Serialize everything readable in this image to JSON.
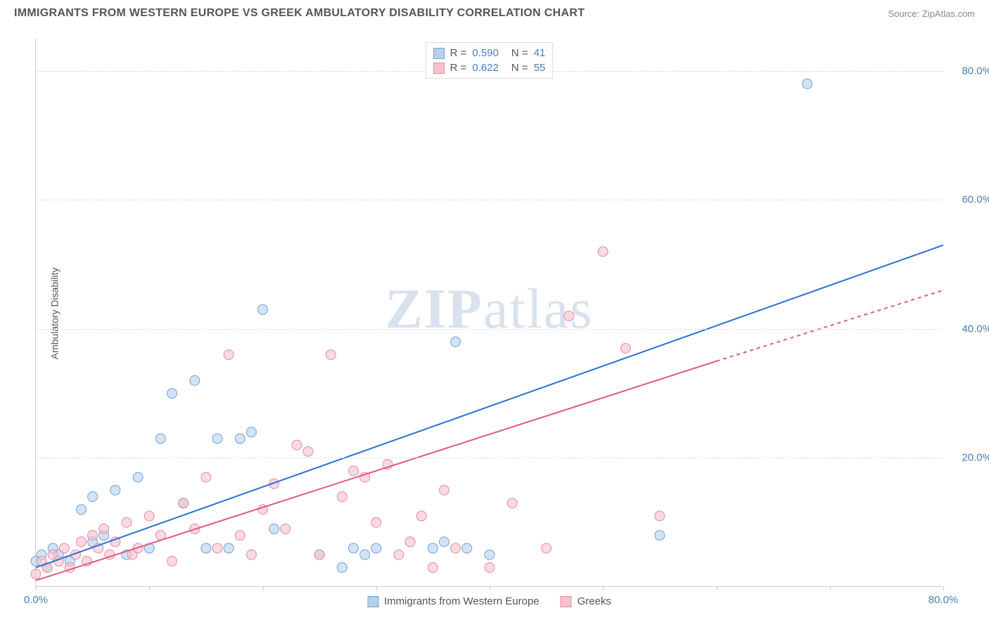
{
  "title": "IMMIGRANTS FROM WESTERN EUROPE VS GREEK AMBULATORY DISABILITY CORRELATION CHART",
  "source": "Source: ZipAtlas.com",
  "watermark": "ZIPatlas",
  "y_axis_label": "Ambulatory Disability",
  "chart": {
    "type": "scatter",
    "xlim": [
      0,
      80
    ],
    "ylim": [
      0,
      85
    ],
    "x_ticks": [
      0,
      10,
      20,
      30,
      40,
      50,
      60,
      70,
      80
    ],
    "x_tick_labels": {
      "0": "0.0%",
      "80": "80.0%"
    },
    "y_gridlines": [
      20,
      40,
      60,
      80
    ],
    "y_tick_labels": {
      "20": "20.0%",
      "40": "40.0%",
      "60": "60.0%",
      "80": "80.0%"
    },
    "background_color": "#ffffff",
    "grid_color": "#dddddd",
    "axis_color": "#cccccc",
    "tick_label_color": "#4a7ebb",
    "axis_label_color": "#555555"
  },
  "series": [
    {
      "name": "Immigrants from Western Europe",
      "color_fill": "#b8d0ec",
      "color_stroke": "#6fa3d8",
      "marker_radius": 7,
      "fill_opacity": 0.6,
      "R": "0.590",
      "N": "41",
      "regression": {
        "x1": 0,
        "y1": 3,
        "x2": 80,
        "y2": 53,
        "color": "#2e6fd1",
        "width": 2,
        "dashed_from": 80
      },
      "points": [
        [
          0,
          4
        ],
        [
          0.5,
          5
        ],
        [
          1,
          3
        ],
        [
          1.5,
          6
        ],
        [
          2,
          5
        ],
        [
          3,
          4
        ],
        [
          4,
          12
        ],
        [
          5,
          7
        ],
        [
          5,
          14
        ],
        [
          6,
          8
        ],
        [
          7,
          15
        ],
        [
          8,
          5
        ],
        [
          9,
          17
        ],
        [
          10,
          6
        ],
        [
          11,
          23
        ],
        [
          12,
          30
        ],
        [
          13,
          13
        ],
        [
          14,
          32
        ],
        [
          15,
          6
        ],
        [
          16,
          23
        ],
        [
          17,
          6
        ],
        [
          18,
          23
        ],
        [
          19,
          24
        ],
        [
          20,
          43
        ],
        [
          21,
          9
        ],
        [
          25,
          5
        ],
        [
          27,
          3
        ],
        [
          28,
          6
        ],
        [
          29,
          5
        ],
        [
          30,
          6
        ],
        [
          35,
          6
        ],
        [
          36,
          7
        ],
        [
          37,
          38
        ],
        [
          38,
          6
        ],
        [
          40,
          5
        ],
        [
          55,
          8
        ],
        [
          68,
          78
        ]
      ]
    },
    {
      "name": "Greeks",
      "color_fill": "#f4c2cd",
      "color_stroke": "#e78aa0",
      "marker_radius": 7,
      "fill_opacity": 0.6,
      "R": "0.622",
      "N": "55",
      "regression": {
        "x1": 0,
        "y1": 1,
        "x2": 60,
        "y2": 35,
        "color": "#e05a7a",
        "width": 2,
        "dashed_from": 60,
        "dashed_to_x": 80,
        "dashed_to_y": 46
      },
      "points": [
        [
          0,
          2
        ],
        [
          0.5,
          4
        ],
        [
          1,
          3
        ],
        [
          1.5,
          5
        ],
        [
          2,
          4
        ],
        [
          2.5,
          6
        ],
        [
          3,
          3
        ],
        [
          3.5,
          5
        ],
        [
          4,
          7
        ],
        [
          4.5,
          4
        ],
        [
          5,
          8
        ],
        [
          5.5,
          6
        ],
        [
          6,
          9
        ],
        [
          6.5,
          5
        ],
        [
          7,
          7
        ],
        [
          8,
          10
        ],
        [
          8.5,
          5
        ],
        [
          9,
          6
        ],
        [
          10,
          11
        ],
        [
          11,
          8
        ],
        [
          12,
          4
        ],
        [
          13,
          13
        ],
        [
          14,
          9
        ],
        [
          15,
          17
        ],
        [
          16,
          6
        ],
        [
          17,
          36
        ],
        [
          18,
          8
        ],
        [
          19,
          5
        ],
        [
          20,
          12
        ],
        [
          21,
          16
        ],
        [
          22,
          9
        ],
        [
          23,
          22
        ],
        [
          24,
          21
        ],
        [
          25,
          5
        ],
        [
          26,
          36
        ],
        [
          27,
          14
        ],
        [
          28,
          18
        ],
        [
          29,
          17
        ],
        [
          30,
          10
        ],
        [
          31,
          19
        ],
        [
          32,
          5
        ],
        [
          33,
          7
        ],
        [
          34,
          11
        ],
        [
          35,
          3
        ],
        [
          36,
          15
        ],
        [
          37,
          6
        ],
        [
          40,
          3
        ],
        [
          42,
          13
        ],
        [
          45,
          6
        ],
        [
          47,
          42
        ],
        [
          50,
          52
        ],
        [
          52,
          37
        ],
        [
          55,
          11
        ]
      ]
    }
  ],
  "legend_bottom": [
    {
      "label": "Immigrants from Western Europe",
      "fill": "#b8d0ec",
      "stroke": "#6fa3d8"
    },
    {
      "label": "Greeks",
      "fill": "#f4c2cd",
      "stroke": "#e78aa0"
    }
  ]
}
